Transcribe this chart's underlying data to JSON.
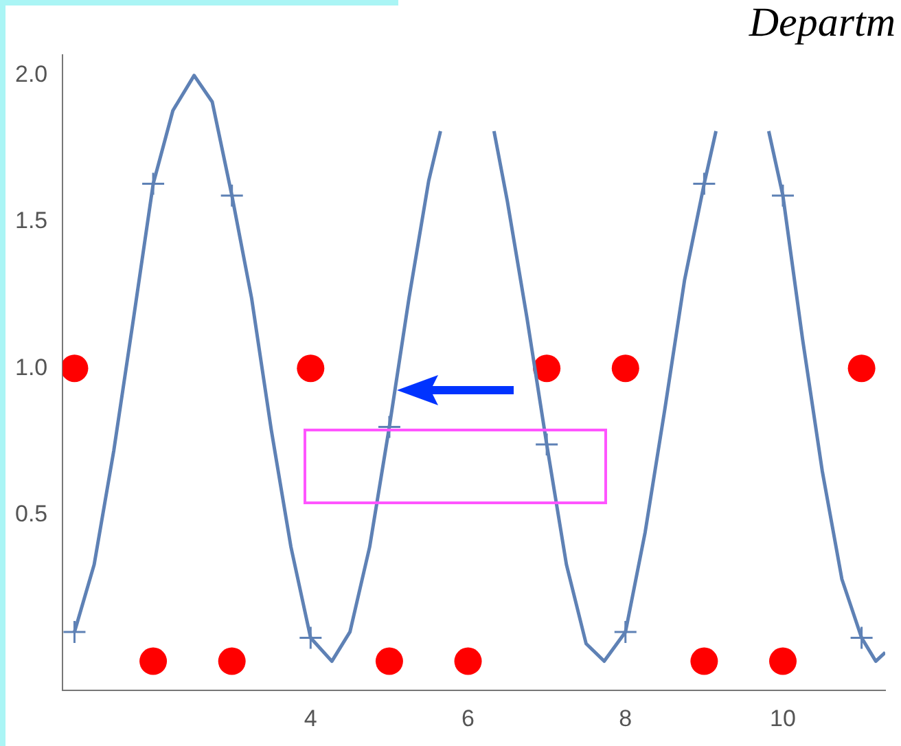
{
  "chart_data": {
    "type": "line",
    "annotations": [
      "Departm"
    ],
    "xlim": [
      0.85,
      11.3
    ],
    "xticks": [
      4,
      6,
      8,
      10
    ],
    "ylim": [
      -0.1,
      2.07
    ],
    "yticks": [
      0.5,
      {
        "value": 1,
        "label": "1.0"
      },
      1.5,
      {
        "value": 2,
        "label": "2.0"
      }
    ],
    "grid": false,
    "legend": false,
    "series": [
      {
        "type": "line",
        "color": "#5e81b5",
        "marker": "none",
        "line_style": "solid",
        "x": [
          1,
          1.25,
          1.5,
          1.75,
          2,
          2.25,
          2.52,
          2.75,
          3,
          3.25,
          3.5,
          3.75,
          4,
          4.27,
          4.5,
          4.75,
          5,
          5.25,
          5.5,
          5.65,
          6,
          6.33,
          6.5,
          6.75,
          7,
          7.25,
          7.5,
          7.73,
          8,
          8.25,
          8.5,
          8.75,
          9,
          9.15,
          9.5,
          9.82,
          10,
          10.25,
          10.5,
          10.75,
          11,
          11.18,
          11.3
        ],
        "values": [
          0.1,
          0.33,
          0.72,
          1.17,
          1.63,
          1.88,
          2.0,
          1.91,
          1.59,
          1.24,
          0.79,
          0.39,
          0.08,
          0,
          0.1,
          0.39,
          0.8,
          1.24,
          1.64,
          1.81,
          null,
          1.81,
          1.57,
          1.17,
          0.74,
          0.33,
          0.06,
          0,
          0.1,
          0.44,
          0.86,
          1.3,
          1.63,
          1.81,
          null,
          1.81,
          1.59,
          1.1,
          0.65,
          0.28,
          0.08,
          0,
          0.03
        ]
      },
      {
        "type": "scatter",
        "color": "#5e81b5",
        "marker": "cross",
        "x": [
          1,
          2,
          3,
          4,
          5,
          7,
          8,
          9,
          10,
          11
        ],
        "values": [
          0.1,
          1.63,
          1.59,
          0.08,
          0.8,
          0.74,
          0.1,
          1.63,
          1.59,
          0.08
        ]
      },
      {
        "type": "scatter",
        "color": "#ff0000",
        "marker": "circle",
        "x": [
          1,
          2,
          3,
          4,
          5,
          6,
          7,
          8,
          9,
          10,
          11
        ],
        "values": [
          1,
          0,
          0,
          1,
          0,
          0,
          1,
          1,
          0,
          0,
          1
        ]
      }
    ]
  }
}
